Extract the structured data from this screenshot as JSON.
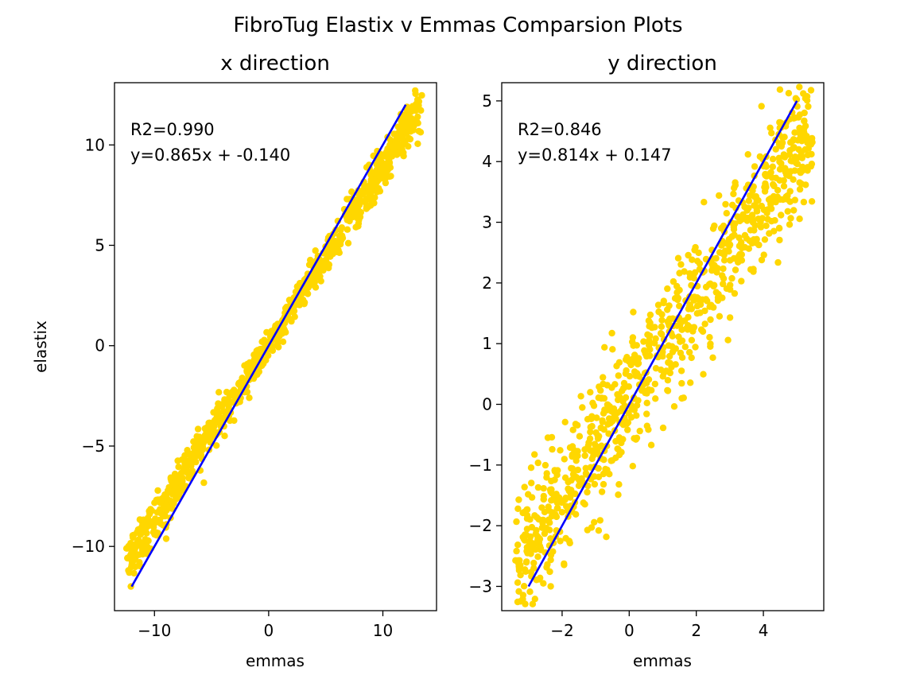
{
  "figure_title": "FibroTug Elastix v Emmas Comparsion Plots",
  "chart_data": [
    {
      "type": "scatter",
      "title": "x direction",
      "xlabel": "emmas",
      "ylabel": "elastix",
      "xlim": [
        -13.5,
        14.7
      ],
      "ylim": [
        -13.2,
        13.1
      ],
      "xticks": [
        -10,
        0,
        10
      ],
      "xtick_labels": [
        "−10",
        "0",
        "10"
      ],
      "yticks": [
        -10,
        -5,
        0,
        5,
        10
      ],
      "ytick_labels": [
        "−10",
        "−5",
        "0",
        "5",
        "10"
      ],
      "annotations": [
        "R2=0.990",
        "y=0.865x + -0.140"
      ],
      "point_color": "#FFD700",
      "line_color": "#0000FF",
      "fit_line": {
        "x": [
          -12,
          12
        ],
        "y": [
          -12,
          12
        ]
      },
      "points": {
        "n": 900,
        "x_range": [
          -12.5,
          13.5
        ],
        "y_around_x_slope": 0.88,
        "spread": 0.6
      }
    },
    {
      "type": "scatter",
      "title": "y direction",
      "xlabel": "emmas",
      "ylabel": "",
      "xlim": [
        -3.8,
        5.8
      ],
      "ylim": [
        -3.4,
        5.3
      ],
      "xticks": [
        -2,
        0,
        2,
        4
      ],
      "xtick_labels": [
        "−2",
        "0",
        "2",
        "4"
      ],
      "yticks": [
        -3,
        -2,
        -1,
        0,
        1,
        2,
        3,
        4,
        5
      ],
      "ytick_labels": [
        "−3",
        "−2",
        "−1",
        "0",
        "1",
        "2",
        "3",
        "4",
        "5"
      ],
      "annotations": [
        "R2=0.846",
        "y=0.814x + 0.147"
      ],
      "point_color": "#FFD700",
      "line_color": "#0000FF",
      "fit_line": {
        "x": [
          -3,
          5
        ],
        "y": [
          -3,
          5
        ]
      },
      "points": {
        "n": 900,
        "x_range": [
          -3.4,
          5.5
        ],
        "y_around_x_slope": 0.814,
        "spread": 0.55
      }
    }
  ]
}
